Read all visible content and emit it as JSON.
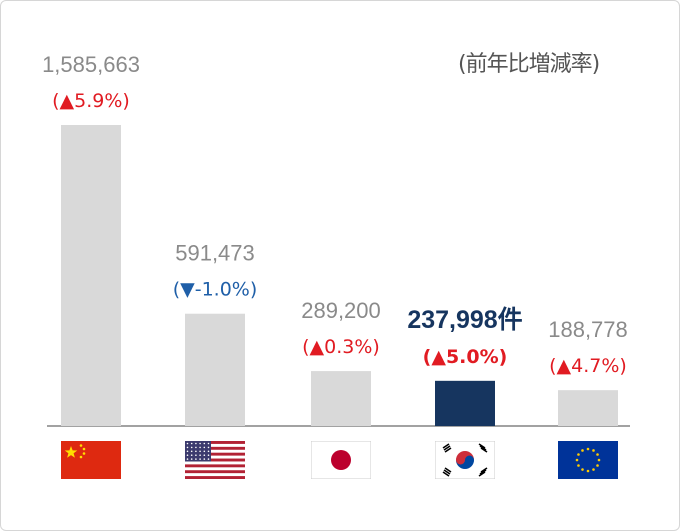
{
  "note": "(前年比増減率)",
  "colors": {
    "bar": "#d9d9d9",
    "highlight": "#16355f",
    "up": "#e11b22",
    "down": "#1f5fa8",
    "axis": "#6b6b6b"
  },
  "flag_icons": [
    "china-flag-icon",
    "usa-flag-icon",
    "japan-flag-icon",
    "korea-flag-icon",
    "eu-flag-icon"
  ],
  "chart_data": {
    "type": "bar",
    "categories": [
      "China",
      "USA",
      "Japan",
      "Korea",
      "EU"
    ],
    "values": [
      1585663,
      591473,
      289200,
      237998,
      188778
    ],
    "value_labels": [
      "1,585,663",
      "591,473",
      "289,200",
      "237,998件",
      "188,778"
    ],
    "change_labels": [
      "(▲5.9%)",
      "(▼-1.0%)",
      "(▲0.3%)",
      "(▲5.0%)",
      "(▲4.7%)"
    ],
    "change_direction": [
      "up",
      "down",
      "up",
      "up",
      "up"
    ],
    "highlight_index": 3
  }
}
